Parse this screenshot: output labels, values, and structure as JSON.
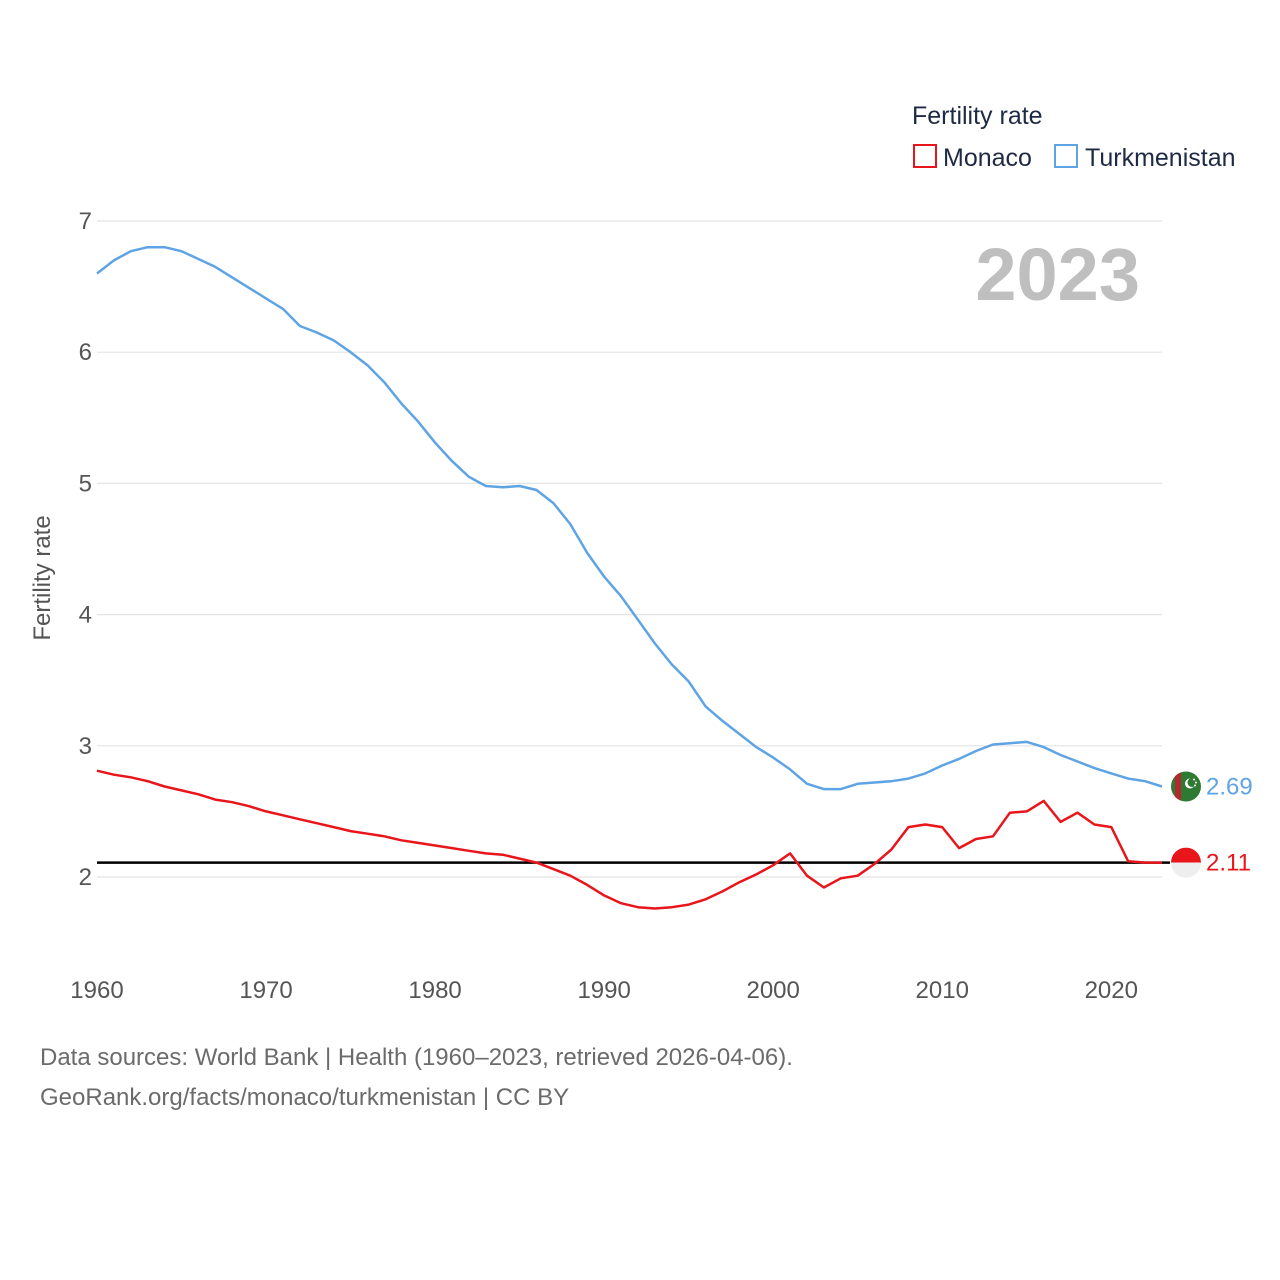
{
  "chart_data": {
    "type": "line",
    "year_display": "2023",
    "ylabel": "Fertility rate",
    "xlim": [
      1960,
      2023
    ],
    "ylim": [
      1.4,
      7.0
    ],
    "yticks": [
      2,
      3,
      4,
      5,
      6,
      7
    ],
    "xticks": [
      1960,
      1970,
      1980,
      1990,
      2000,
      2010,
      2020
    ],
    "reference_line": 2.11,
    "legend": {
      "title": "Fertility rate",
      "position": "top-right"
    },
    "series": [
      {
        "name": "Monaco",
        "color": "#e8151b",
        "end_label": "2.11",
        "flag": "monaco",
        "x": [
          1960,
          1961,
          1962,
          1963,
          1964,
          1965,
          1966,
          1967,
          1968,
          1969,
          1970,
          1971,
          1972,
          1973,
          1974,
          1975,
          1976,
          1977,
          1978,
          1979,
          1980,
          1981,
          1982,
          1983,
          1984,
          1985,
          1986,
          1987,
          1988,
          1989,
          1990,
          1991,
          1992,
          1993,
          1994,
          1995,
          1996,
          1997,
          1998,
          1999,
          2000,
          2001,
          2002,
          2003,
          2004,
          2005,
          2006,
          2007,
          2008,
          2009,
          2010,
          2011,
          2012,
          2013,
          2014,
          2015,
          2016,
          2017,
          2018,
          2019,
          2020,
          2021,
          2022,
          2023
        ],
        "values": [
          2.81,
          2.78,
          2.76,
          2.73,
          2.69,
          2.66,
          2.63,
          2.59,
          2.57,
          2.54,
          2.5,
          2.47,
          2.44,
          2.41,
          2.38,
          2.35,
          2.33,
          2.31,
          2.28,
          2.26,
          2.24,
          2.22,
          2.2,
          2.18,
          2.17,
          2.14,
          2.11,
          2.06,
          2.01,
          1.94,
          1.86,
          1.8,
          1.77,
          1.76,
          1.77,
          1.79,
          1.83,
          1.89,
          1.96,
          2.02,
          2.09,
          2.18,
          2.01,
          1.92,
          1.99,
          2.01,
          2.1,
          2.21,
          2.38,
          2.4,
          2.38,
          2.22,
          2.29,
          2.31,
          2.49,
          2.5,
          2.58,
          2.42,
          2.49,
          2.4,
          2.38,
          2.12,
          2.11,
          2.11
        ]
      },
      {
        "name": "Turkmenistan",
        "color": "#5ea4e4",
        "end_label": "2.69",
        "flag": "turkmenistan",
        "x": [
          1960,
          1961,
          1962,
          1963,
          1964,
          1965,
          1966,
          1967,
          1968,
          1969,
          1970,
          1971,
          1972,
          1973,
          1974,
          1975,
          1976,
          1977,
          1978,
          1979,
          1980,
          1981,
          1982,
          1983,
          1984,
          1985,
          1986,
          1987,
          1988,
          1989,
          1990,
          1991,
          1992,
          1993,
          1994,
          1995,
          1996,
          1997,
          1998,
          1999,
          2000,
          2001,
          2002,
          2003,
          2004,
          2005,
          2006,
          2007,
          2008,
          2009,
          2010,
          2011,
          2012,
          2013,
          2014,
          2015,
          2016,
          2017,
          2018,
          2019,
          2020,
          2021,
          2022,
          2023
        ],
        "values": [
          6.6,
          6.7,
          6.77,
          6.8,
          6.8,
          6.77,
          6.71,
          6.65,
          6.57,
          6.49,
          6.41,
          6.33,
          6.2,
          6.15,
          6.09,
          6.0,
          5.9,
          5.77,
          5.61,
          5.47,
          5.31,
          5.17,
          5.05,
          4.98,
          4.97,
          4.98,
          4.95,
          4.85,
          4.69,
          4.47,
          4.29,
          4.14,
          3.96,
          3.78,
          3.62,
          3.49,
          3.3,
          3.19,
          3.09,
          2.99,
          2.91,
          2.82,
          2.71,
          2.67,
          2.67,
          2.71,
          2.72,
          2.73,
          2.75,
          2.79,
          2.85,
          2.9,
          2.96,
          3.01,
          3.02,
          3.03,
          2.99,
          2.93,
          2.88,
          2.83,
          2.79,
          2.75,
          2.73,
          2.69
        ]
      }
    ],
    "source_lines": [
      "Data sources: World Bank | Health (1960–2023, retrieved 2026-04-06).",
      "GeoRank.org/facts/monaco/turkmenistan | CC BY"
    ]
  }
}
